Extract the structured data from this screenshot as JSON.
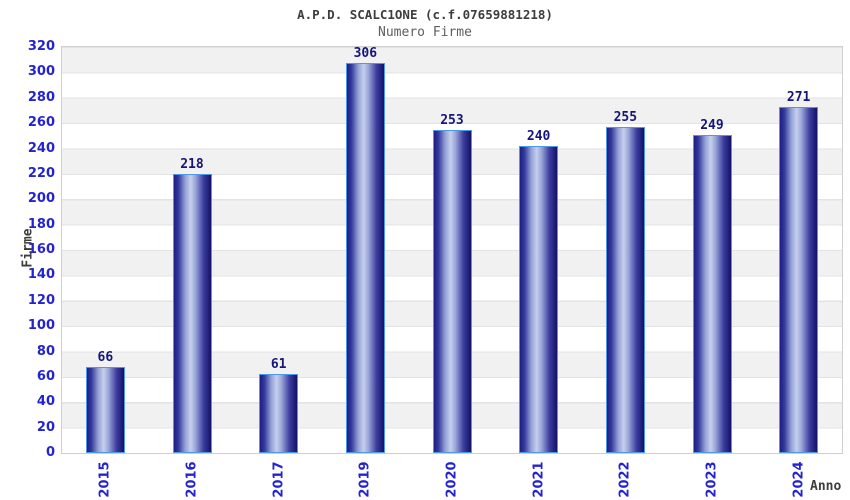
{
  "chart_data": {
    "type": "bar",
    "title": "A.P.D. SCALC1ONE (c.f.07659881218)",
    "subtitle": "Numero Firme",
    "xlabel": "Anno",
    "ylabel": "Firme",
    "categories": [
      "2015",
      "2016",
      "2017",
      "2019",
      "2020",
      "2021",
      "2022",
      "2023",
      "2024"
    ],
    "values": [
      66,
      218,
      61,
      306,
      253,
      240,
      255,
      249,
      271
    ],
    "ylim": [
      0,
      320
    ],
    "ytick_step": 20,
    "grid": "horizontal-bands",
    "legend": "none",
    "colors": {
      "tick_label": "#2323cf",
      "value_label": "#15157a",
      "title": "#3d3d3d",
      "subtitle": "#5f5f5f",
      "bar_dark": "#1e1e84",
      "bar_mid": "#93a0d4",
      "bar_light": "#c6cfee",
      "bar_edge_right": "#121268",
      "bar_border": "#4f97e8",
      "band_gray": "#f1f1f1",
      "band_white": "#ffffff",
      "gridline": "#e3e3e3",
      "plot_border": "#cfcfcf"
    }
  }
}
